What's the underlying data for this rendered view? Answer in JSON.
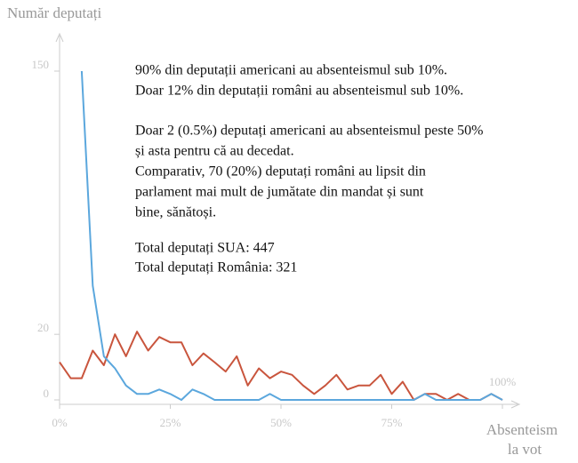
{
  "chart_data": {
    "type": "line",
    "y_label": "Număr deputați",
    "x_label": [
      "Absenteism",
      "la vot"
    ],
    "annotations": [
      "90% din deputații americani au absenteismul sub 10%.",
      "Doar 12% din deputații români au absenteismul sub 10%.",
      "Doar 2 (0.5%) deputați americani au absenteismul peste 50%",
      "și asta pentru că au decedat.",
      "Comparativ, 70 (20%) deputați români au lipsit din",
      "parlament mai mult de jumătate din mandat și sunt",
      "bine, sănătoși.",
      "Total deputați SUA: 447",
      "Total deputați România: 321"
    ],
    "x": [
      0,
      2.5,
      5,
      7.5,
      10,
      12.5,
      15,
      17.5,
      20,
      22.5,
      25,
      27.5,
      30,
      32.5,
      35,
      37.5,
      40,
      42.5,
      45,
      47.5,
      50,
      52.5,
      55,
      57.5,
      60,
      62.5,
      65,
      67.5,
      70,
      72.5,
      75,
      77.5,
      80,
      82.5,
      85,
      87.5,
      90,
      92.5,
      95,
      97.5,
      100
    ],
    "series": [
      {
        "color": "#c9553d",
        "values": [
          10,
          5,
          5,
          14,
          9,
          20,
          12,
          21,
          14,
          19,
          17,
          17,
          9,
          13,
          10,
          7,
          12,
          3,
          8,
          5,
          7,
          6,
          3,
          1,
          3,
          6,
          2,
          3,
          3,
          6,
          1,
          4,
          0,
          1,
          1,
          0,
          1,
          0,
          0,
          1,
          0
        ]
      },
      {
        "color": "#5ba7dd",
        "values": [
          null,
          null,
          150,
          40,
          12,
          8,
          3,
          1,
          1,
          2,
          1,
          0,
          2,
          1,
          0,
          0,
          0,
          0,
          0,
          1,
          0,
          0,
          0,
          0,
          0,
          0,
          0,
          0,
          0,
          0,
          0,
          0,
          0,
          1,
          0,
          0,
          0,
          0,
          0,
          1,
          0
        ]
      }
    ],
    "xlim": [
      0,
      100
    ],
    "xticks": [
      {
        "value": 0,
        "label": "0%"
      },
      {
        "value": 25,
        "label": "25%"
      },
      {
        "value": 50,
        "label": "50%"
      },
      {
        "value": 75,
        "label": "75%"
      },
      {
        "value": 100,
        "label": "100%"
      }
    ],
    "ylim": [
      0,
      150
    ],
    "yticks": [
      0,
      20,
      150
    ],
    "yscale": "pow",
    "yexponent": 0.8
  }
}
